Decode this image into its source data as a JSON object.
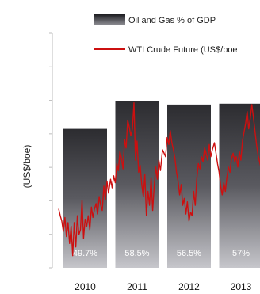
{
  "chart_data": {
    "type": "bar",
    "title": "",
    "xlabel": "",
    "ylabel": "(US$/boe)",
    "categories": [
      "2010",
      "2011",
      "2012",
      "2013"
    ],
    "bar_labels": [
      "49.7%",
      "58.5%",
      "56.5%",
      "57%"
    ],
    "ylim": [
      0,
      135
    ],
    "series": [
      {
        "name": "Oil and Gas % of GDP",
        "kind": "bar",
        "color": "#2b2b2e",
        "values": [
          80,
          96,
          94,
          94.5
        ]
      },
      {
        "name": "WTI Crude Future (US$/boe",
        "kind": "line",
        "color": "#cc1010",
        "x": [
          2010.0,
          2010.03,
          2010.06,
          2010.09,
          2010.12,
          2010.15,
          2010.18,
          2010.21,
          2010.24,
          2010.27,
          2010.3,
          2010.33,
          2010.36,
          2010.39,
          2010.42,
          2010.45,
          2010.48,
          2010.51,
          2010.54,
          2010.57,
          2010.6,
          2010.63,
          2010.66,
          2010.69,
          2010.72,
          2010.75,
          2010.78,
          2010.81,
          2010.84,
          2010.87,
          2010.9,
          2010.93,
          2010.96,
          2011.0,
          2011.03,
          2011.06,
          2011.09,
          2011.12,
          2011.15,
          2011.18,
          2011.21,
          2011.24,
          2011.27,
          2011.3,
          2011.33,
          2011.36,
          2011.39,
          2011.42,
          2011.45,
          2011.48,
          2011.51,
          2011.54,
          2011.57,
          2011.6,
          2011.63,
          2011.66,
          2011.69,
          2011.72,
          2011.75,
          2011.78,
          2011.81,
          2011.84,
          2011.87,
          2011.9,
          2011.93,
          2011.96,
          2012.0,
          2012.03,
          2012.06,
          2012.09,
          2012.12,
          2012.15,
          2012.18,
          2012.21,
          2012.24,
          2012.27,
          2012.3,
          2012.33,
          2012.36,
          2012.39,
          2012.42,
          2012.45,
          2012.48,
          2012.51,
          2012.54,
          2012.57,
          2012.6,
          2012.63,
          2012.66,
          2012.69,
          2012.72,
          2012.75,
          2012.78,
          2012.81,
          2012.84,
          2012.87,
          2012.9,
          2012.93,
          2012.96,
          2013.0,
          2013.03,
          2013.06,
          2013.09,
          2013.12,
          2013.15,
          2013.18,
          2013.21,
          2013.24,
          2013.27,
          2013.3,
          2013.33,
          2013.36,
          2013.39,
          2013.42,
          2013.45,
          2013.48,
          2013.51,
          2013.54,
          2013.57,
          2013.6,
          2013.63,
          2013.66,
          2013.69,
          2013.72,
          2013.75,
          2013.78,
          2013.81,
          2013.84,
          2013.87,
          2013.9
        ],
        "values": [
          34,
          30,
          27,
          21,
          29,
          18,
          26,
          14,
          24,
          7,
          26,
          12,
          30,
          19,
          22,
          39,
          17,
          28,
          24,
          30,
          22,
          35,
          29,
          34,
          37,
          31,
          41,
          36,
          33,
          47,
          39,
          50,
          43,
          51,
          46,
          53,
          49,
          60,
          56,
          67,
          63,
          57,
          74,
          69,
          85,
          81,
          76,
          80,
          95,
          62,
          73,
          55,
          59,
          48,
          41,
          54,
          30,
          44,
          36,
          52,
          33,
          47,
          58,
          51,
          62,
          56,
          68,
          66,
          64,
          75,
          71,
          79,
          72,
          68,
          63,
          55,
          50,
          42,
          48,
          36,
          40,
          31,
          38,
          27,
          32,
          30,
          44,
          36,
          51,
          60,
          57,
          64,
          61,
          69,
          66,
          62,
          71,
          64,
          68,
          72,
          66,
          60,
          55,
          47,
          42,
          49,
          44,
          52,
          58,
          55,
          63,
          66,
          61,
          64,
          58,
          67,
          62,
          73,
          78,
          83,
          90,
          80,
          86,
          94,
          87,
          79,
          71,
          65,
          61,
          57
        ]
      }
    ]
  }
}
